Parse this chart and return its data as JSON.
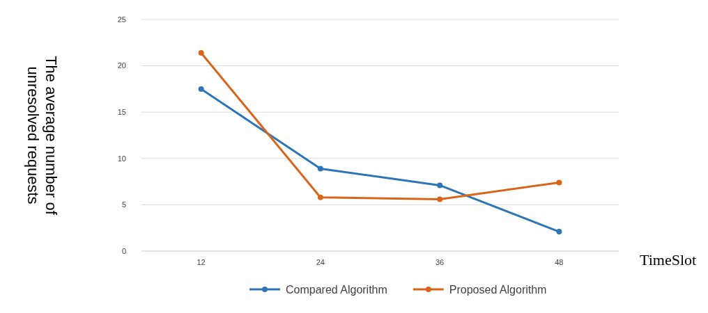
{
  "chart_data": {
    "type": "line",
    "xlabel": "TimeSlot",
    "ylabel": "The average number of unresolved requests",
    "categories": [
      "12",
      "24",
      "36",
      "48"
    ],
    "series": [
      {
        "name": "Compared Algorithm",
        "color": "#2e75b6",
        "values": [
          17.5,
          8.9,
          7.1,
          2.1
        ]
      },
      {
        "name": "Proposed Algorithm",
        "color": "#d9651b",
        "values": [
          21.4,
          5.8,
          5.6,
          7.4
        ]
      }
    ],
    "ylim": [
      0,
      25
    ],
    "yticks": [
      0,
      5,
      10,
      15,
      20,
      25
    ],
    "grid": "y",
    "legend": "bottom",
    "marker": "circle",
    "line_style": "solid"
  }
}
